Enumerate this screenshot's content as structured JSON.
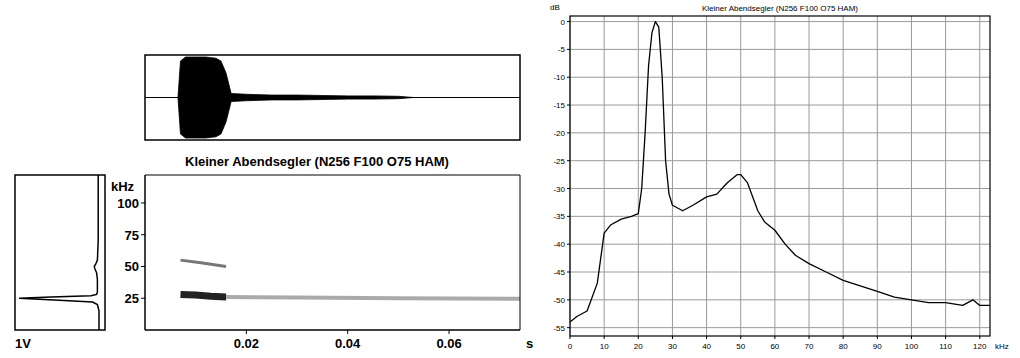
{
  "chart_data": [
    {
      "type": "waveform",
      "x": [
        0.0065,
        0.007,
        0.008,
        0.01,
        0.012,
        0.014,
        0.015,
        0.016,
        0.017,
        0.02,
        0.025,
        0.03,
        0.035,
        0.04,
        0.045,
        0.05,
        0.053
      ],
      "values": [
        0,
        0.9,
        1,
        1,
        1,
        0.97,
        0.9,
        0.6,
        0.1,
        0.08,
        0.06,
        0.06,
        0.05,
        0.04,
        0.04,
        0.03,
        0
      ],
      "xlim": [
        0,
        0.074
      ],
      "ylim": [
        -1,
        1
      ],
      "color": "#000000",
      "tick_labels": false
    },
    {
      "type": "spectrogram",
      "title": "Kleiner Abendsegler (N256 F100 O75 HAM)",
      "xlabel": "s",
      "ylabel": "kHz",
      "series": [
        {
          "color": "#222222",
          "x": [
            0.007,
            0.01,
            0.013,
            0.016
          ],
          "values": [
            28,
            27.5,
            26.5,
            26
          ]
        },
        {
          "color": "#777777",
          "x": [
            0.007,
            0.011,
            0.016
          ],
          "values": [
            55,
            53,
            50
          ]
        },
        {
          "color": "#aaaaaa",
          "x": [
            0.016,
            0.03,
            0.05,
            0.074
          ],
          "values": [
            26,
            25.5,
            25,
            24.5
          ]
        }
      ],
      "xlim": [
        0,
        0.074
      ],
      "xticks": [
        0.02,
        0.04,
        0.06
      ],
      "ylim": [
        0,
        122
      ],
      "yticks": [
        25,
        50,
        75,
        100
      ]
    },
    {
      "type": "line",
      "orientation": "horizontal",
      "ylabel": "1V",
      "x": [
        0,
        15,
        20,
        22,
        23.5,
        25,
        26,
        27,
        28,
        30,
        40,
        45,
        48,
        50,
        52,
        55,
        70,
        100,
        122
      ],
      "values": [
        0,
        0,
        0.02,
        0.08,
        0.5,
        1,
        0.6,
        0.1,
        0.03,
        0.02,
        0.02,
        0.03,
        0.05,
        0.06,
        0.04,
        0.02,
        0.01,
        0.01,
        0.01
      ],
      "xlim": [
        0,
        122
      ],
      "ylim": [
        0,
        1
      ],
      "color": "#000000",
      "tick_labels": false
    },
    {
      "type": "line",
      "title": "Kleiner Abendsegler (N256 F100 O75 HAM)",
      "xlabel": "kHz",
      "ylabel": "dB",
      "x": [
        0,
        2,
        5,
        8,
        10,
        12,
        15,
        18,
        20,
        21,
        22,
        23,
        24,
        25,
        26,
        27,
        28,
        29,
        30,
        33,
        36,
        40,
        43,
        46,
        49,
        50,
        52,
        55,
        57,
        60,
        63,
        66,
        70,
        75,
        80,
        85,
        90,
        95,
        100,
        105,
        110,
        115,
        118,
        120,
        123
      ],
      "values": [
        -54,
        -53,
        -52,
        -47,
        -38,
        -36.5,
        -35.5,
        -35,
        -34.5,
        -30,
        -20,
        -8,
        -2,
        0,
        -1,
        -10,
        -25,
        -31,
        -33,
        -34,
        -33,
        -31.5,
        -31,
        -29,
        -27.5,
        -27.5,
        -29,
        -34,
        -36,
        -37.5,
        -40,
        -42,
        -43.5,
        -45,
        -46.5,
        -47.5,
        -48.5,
        -49.5,
        -50,
        -50.5,
        -50.5,
        -51,
        -50,
        -51,
        -51
      ],
      "xlim": [
        0,
        123
      ],
      "xticks": [
        0,
        10,
        20,
        30,
        40,
        50,
        60,
        70,
        80,
        90,
        100,
        110,
        120
      ],
      "ylim": [
        -56.5,
        1
      ],
      "yticks": [
        0,
        -5,
        -10,
        -15,
        -20,
        -25,
        -30,
        -35,
        -40,
        -45,
        -50,
        -55
      ],
      "color": "#000000",
      "grid": true
    }
  ]
}
